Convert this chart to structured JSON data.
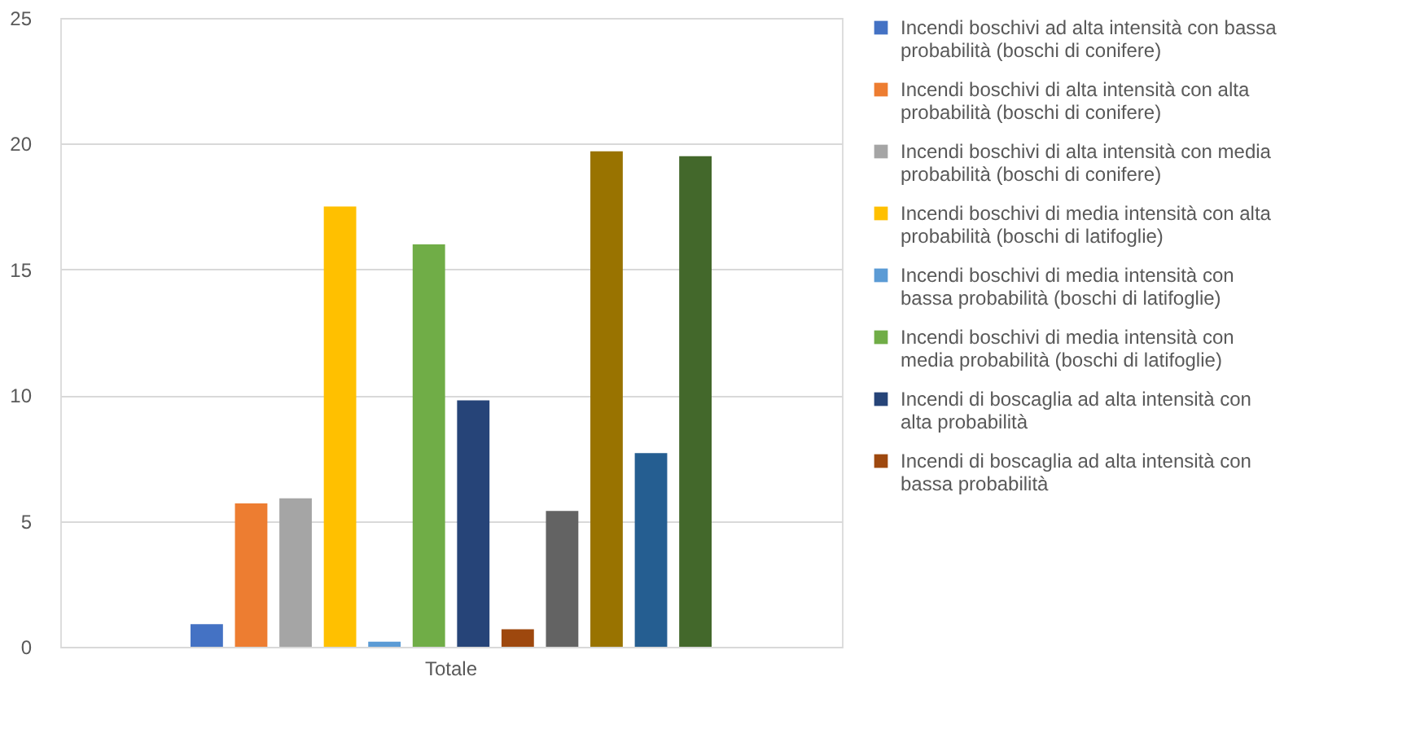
{
  "chart_data": {
    "type": "bar",
    "categories": [
      "Totale"
    ],
    "series": [
      {
        "name": "Incendi boschivi ad alta intensità con bassa probabilità (boschi di conifere)",
        "color": "#4472c4",
        "values": [
          0.9
        ]
      },
      {
        "name": "Incendi boschivi di alta intensità con alta probabilità (boschi di conifere)",
        "color": "#ed7d31",
        "values": [
          5.7
        ]
      },
      {
        "name": "Incendi boschivi di alta intensità con media probabilità (boschi di conifere)",
        "color": "#a5a5a5",
        "values": [
          5.9
        ]
      },
      {
        "name": "Incendi boschivi di media intensità con alta probabilità (boschi di latifoglie)",
        "color": "#ffc000",
        "values": [
          17.5
        ]
      },
      {
        "name": "Incendi boschivi di media intensità con bassa probabilità (boschi di latifoglie)",
        "color": "#5b9bd5",
        "values": [
          0.2
        ]
      },
      {
        "name": "Incendi boschivi di media intensità con media probabilità (boschi di latifoglie)",
        "color": "#70ad47",
        "values": [
          16.0
        ]
      },
      {
        "name": "Incendi di boscaglia ad alta intensità con alta probabilità",
        "color": "#264478",
        "values": [
          9.8
        ]
      },
      {
        "name": "Incendi di boscaglia ad alta intensità con bassa probabilità",
        "color": "#9e480e",
        "values": [
          0.7
        ]
      },
      {
        "color": "#636363",
        "values": [
          5.4
        ]
      },
      {
        "color": "#997300",
        "values": [
          19.7
        ]
      },
      {
        "color": "#255e91",
        "values": [
          7.7
        ]
      },
      {
        "color": "#43682b",
        "values": [
          19.5
        ]
      }
    ],
    "ylim": [
      0,
      25
    ],
    "yticks": [
      0,
      5,
      10,
      15,
      20,
      25
    ],
    "grid": "y",
    "legend": "right"
  }
}
